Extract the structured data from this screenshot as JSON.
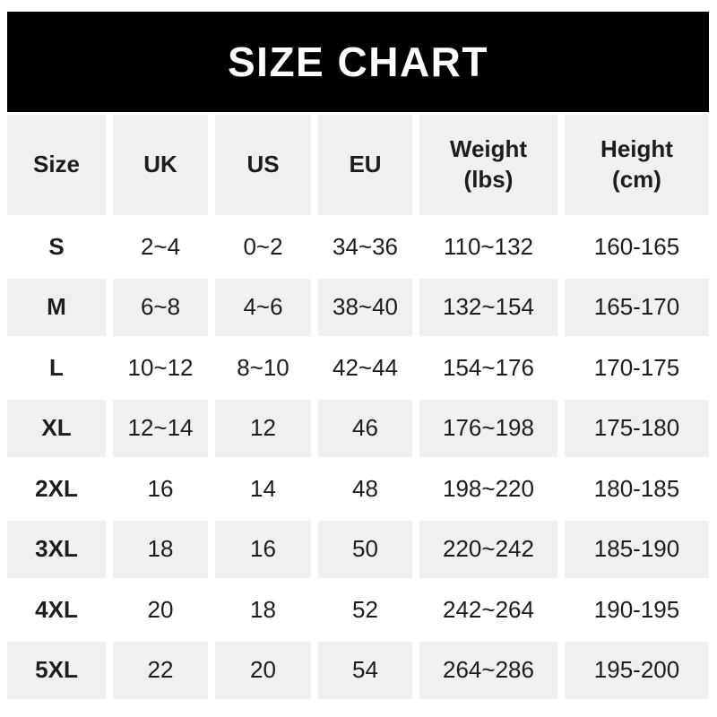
{
  "title": "SIZE CHART",
  "colors": {
    "banner_bg": "#000000",
    "banner_text": "#ffffff",
    "row_alt_bg": "#f1f0ef",
    "text": "#1d1d1f",
    "page_bg": "#ffffff"
  },
  "chart_data": {
    "type": "table",
    "title": "SIZE CHART",
    "columns": [
      "Size",
      "UK",
      "US",
      "EU",
      "Weight\n(lbs)",
      "Height\n(cm)"
    ],
    "rows": [
      [
        "S",
        "2~4",
        "0~2",
        "34~36",
        "110~132",
        "160-165"
      ],
      [
        "M",
        "6~8",
        "4~6",
        "38~40",
        "132~154",
        "165-170"
      ],
      [
        "L",
        "10~12",
        "8~10",
        "42~44",
        "154~176",
        "170-175"
      ],
      [
        "XL",
        "12~14",
        "12",
        "46",
        "176~198",
        "175-180"
      ],
      [
        "2XL",
        "16",
        "14",
        "48",
        "198~220",
        "180-185"
      ],
      [
        "3XL",
        "18",
        "16",
        "50",
        "220~242",
        "185-190"
      ],
      [
        "4XL",
        "20",
        "18",
        "52",
        "242~264",
        "190-195"
      ],
      [
        "5XL",
        "22",
        "20",
        "54",
        "264~286",
        "195-200"
      ]
    ]
  }
}
